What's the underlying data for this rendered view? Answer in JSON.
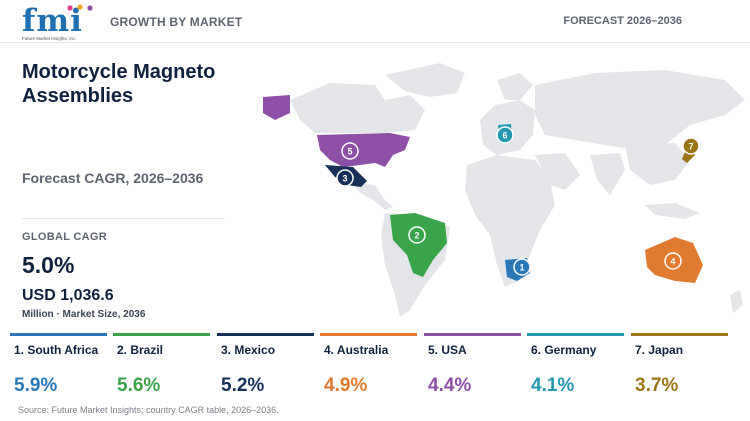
{
  "header": {
    "logo_text": "fmi",
    "logo_subtext": "Future Market Insights, Inc.",
    "left_label": "GROWTH BY MARKET",
    "right_label": "FORECAST 2026–2036"
  },
  "title": "Motorcycle Magneto Assemblies",
  "subtitle": "Forecast CAGR, 2026–2036",
  "global": {
    "label": "GLOBAL CAGR",
    "cagr": "5.0%",
    "market_size": "USD 1,036.6",
    "market_size_note": "Million · Market Size, 2036"
  },
  "colors": {
    "south_africa": "#2a78b8",
    "brazil": "#3aa44a",
    "mexico": "#17305a",
    "australia": "#e07a2f",
    "usa": "#8e4fa6",
    "germany": "#2398b0",
    "japan": "#9a7417",
    "land": "#e3e5e8"
  },
  "countries": [
    {
      "rank": "1",
      "label": "1. South Africa",
      "cagr": "5.9%",
      "color": "#2a78b8"
    },
    {
      "rank": "2",
      "label": "2. Brazil",
      "cagr": "5.6%",
      "color": "#3aa44a"
    },
    {
      "rank": "3",
      "label": "3. Mexico",
      "cagr": "5.2%",
      "color": "#17305a"
    },
    {
      "rank": "4",
      "label": "4. Australia",
      "cagr": "4.9%",
      "color": "#e07a2f"
    },
    {
      "rank": "5",
      "label": "5. USA",
      "cagr": "4.4%",
      "color": "#8e4fa6"
    },
    {
      "rank": "6",
      "label": "6. Germany",
      "cagr": "4.1%",
      "color": "#2398b0"
    },
    {
      "rank": "7",
      "label": "7. Japan",
      "cagr": "3.7%",
      "color": "#9a7417"
    }
  ],
  "source": "Source: Future Market Insights; country CAGR table, 2026–2036."
}
